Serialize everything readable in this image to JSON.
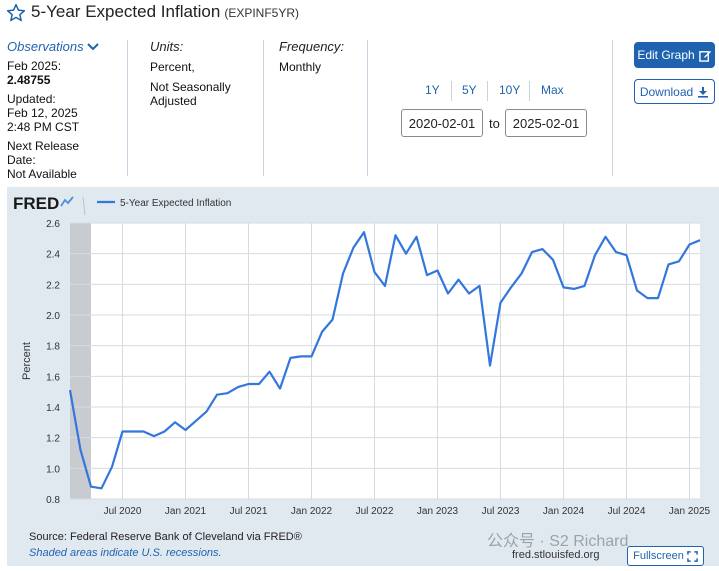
{
  "header": {
    "title": "5-Year Expected Inflation",
    "series_id": "(EXPINF5YR)"
  },
  "observations": {
    "label": "Observations",
    "date_label": "Feb 2025:",
    "value": "2.48755",
    "updated_label": "Updated:",
    "updated_date": "Feb 12, 2025",
    "updated_time": "2:48 PM CST",
    "next_release_label": "Next Release",
    "next_release_label2": "Date:",
    "next_release_value": "Not Available"
  },
  "units": {
    "label": "Units:",
    "line1": "Percent,",
    "line2": "Not Seasonally",
    "line3": "Adjusted"
  },
  "frequency": {
    "label": "Frequency:",
    "value": "Monthly"
  },
  "range": {
    "buttons": [
      "1Y",
      "5Y",
      "10Y",
      "Max"
    ],
    "start": "2020-02-01",
    "to": "to",
    "end": "2025-02-01"
  },
  "actions": {
    "edit": "Edit Graph",
    "download": "Download",
    "fullscreen": "Fullscreen"
  },
  "footer": {
    "source": "Source: Federal Reserve Bank of Cleveland via FRED®",
    "shaded": "Shaded areas indicate U.S. recessions.",
    "url": "fred.stlouisfed.org",
    "watermark": "公众号 · S2 Richard"
  },
  "colors": {
    "accent": "#1f63b0",
    "line": "#3377dd",
    "recession": "#c8ccd1",
    "panel": "#e1e9f0"
  },
  "chart_data": {
    "type": "line",
    "logo": "FRED",
    "legend": "5-Year Expected Inflation",
    "ylabel": "Percent",
    "ylim": [
      0.8,
      2.6
    ],
    "yticks": [
      "0.8",
      "1.0",
      "1.2",
      "1.4",
      "1.6",
      "1.8",
      "2.0",
      "2.2",
      "2.4",
      "2.6"
    ],
    "xticks": [
      {
        "label": "Jul 2020",
        "date": "2020-07"
      },
      {
        "label": "Jan 2021",
        "date": "2021-01"
      },
      {
        "label": "Jul 2021",
        "date": "2021-07"
      },
      {
        "label": "Jan 2022",
        "date": "2022-01"
      },
      {
        "label": "Jul 2022",
        "date": "2022-07"
      },
      {
        "label": "Jan 2023",
        "date": "2023-01"
      },
      {
        "label": "Jul 2023",
        "date": "2023-07"
      },
      {
        "label": "Jan 2024",
        "date": "2024-01"
      },
      {
        "label": "Jul 2024",
        "date": "2024-07"
      },
      {
        "label": "Jan 2025",
        "date": "2025-01"
      }
    ],
    "recession": [
      "2020-02",
      "2020-04"
    ],
    "series": [
      {
        "x": [
          "2020-02",
          "2020-03",
          "2020-04",
          "2020-05",
          "2020-06",
          "2020-07",
          "2020-08",
          "2020-09",
          "2020-10",
          "2020-11",
          "2020-12",
          "2021-01",
          "2021-02",
          "2021-03",
          "2021-04",
          "2021-05",
          "2021-06",
          "2021-07",
          "2021-08",
          "2021-09",
          "2021-10",
          "2021-11",
          "2021-12",
          "2022-01",
          "2022-02",
          "2022-03",
          "2022-04",
          "2022-05",
          "2022-06",
          "2022-07",
          "2022-08",
          "2022-09",
          "2022-10",
          "2022-11",
          "2022-12",
          "2023-01",
          "2023-02",
          "2023-03",
          "2023-04",
          "2023-05",
          "2023-06",
          "2023-07",
          "2023-08",
          "2023-09",
          "2023-10",
          "2023-11",
          "2023-12",
          "2024-01",
          "2024-02",
          "2024-03",
          "2024-04",
          "2024-05",
          "2024-06",
          "2024-07",
          "2024-08",
          "2024-09",
          "2024-10",
          "2024-11",
          "2024-12",
          "2025-01",
          "2025-02"
        ],
        "values": [
          1.51,
          1.12,
          0.88,
          0.87,
          1.01,
          1.24,
          1.24,
          1.24,
          1.21,
          1.24,
          1.3,
          1.25,
          1.31,
          1.37,
          1.48,
          1.49,
          1.53,
          1.55,
          1.55,
          1.63,
          1.52,
          1.72,
          1.73,
          1.73,
          1.89,
          1.97,
          2.27,
          2.44,
          2.54,
          2.28,
          2.19,
          2.52,
          2.4,
          2.51,
          2.26,
          2.29,
          2.14,
          2.23,
          2.14,
          2.19,
          1.67,
          2.08,
          2.18,
          2.27,
          2.41,
          2.43,
          2.36,
          2.18,
          2.17,
          2.19,
          2.39,
          2.51,
          2.41,
          2.39,
          2.16,
          2.11,
          2.11,
          2.33,
          2.35,
          2.46,
          2.48755
        ]
      }
    ]
  }
}
